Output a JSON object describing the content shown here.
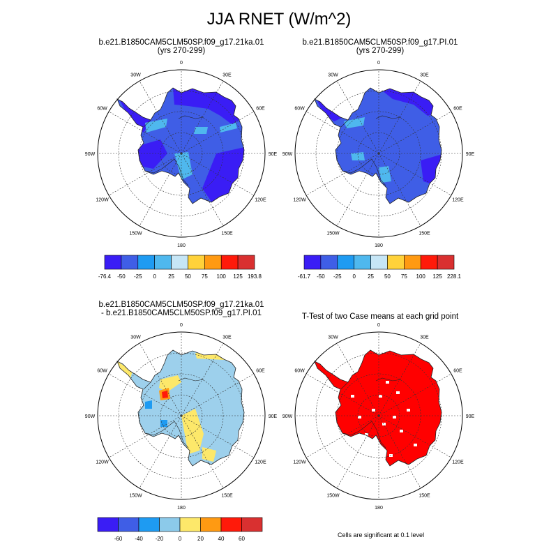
{
  "title": "JJA RNET (W/m^2)",
  "panels": [
    {
      "title_line1": "b.e21.B1850CAM5CLM50SP.f09_g17.21ka.01",
      "title_line2": "(yrs 270-299)"
    },
    {
      "title_line1": "b.e21.B1850CAM5CLM50SP.f09_g17.PI.01",
      "title_line2": "(yrs 270-299)"
    },
    {
      "title_line1": "b.e21.B1850CAM5CLM50SP.f09_g17.21ka.01",
      "title_line2": "- b.e21.B1850CAM5CLM50SP.f09_g17.PI.01"
    },
    {
      "title_line1": "T-Test of two Case means at each grid point",
      "title_line2": ""
    }
  ],
  "lon_labels": [
    "0",
    "30E",
    "60E",
    "90E",
    "120E",
    "150E",
    "180",
    "150W",
    "120W",
    "90W",
    "60W",
    "30W"
  ],
  "colorbars": [
    {
      "labels": [
        "-76.4",
        "-50",
        "-25",
        "0",
        "25",
        "50",
        "75",
        "100",
        "125",
        "193.8"
      ],
      "colors": [
        "#3a1df5",
        "#3f5ee6",
        "#1e9bf2",
        "#4fb8ee",
        "#c6e6f6",
        "#ffd23a",
        "#ff9a12",
        "#ff1a0a",
        "#d93030"
      ]
    },
    {
      "labels": [
        "-61.7",
        "-50",
        "-25",
        "0",
        "25",
        "50",
        "75",
        "100",
        "125",
        "228.1"
      ],
      "colors": [
        "#3a1df5",
        "#3f5ee6",
        "#1e9bf2",
        "#4fb8ee",
        "#c6e6f6",
        "#ffd23a",
        "#ff9a12",
        "#ff1a0a",
        "#d93030"
      ]
    },
    {
      "labels": [
        "-60",
        "-40",
        "-20",
        "0",
        "20",
        "40",
        "60"
      ],
      "colors": [
        "#3a1df5",
        "#3f5ee6",
        "#1e9bf2",
        "#8ccaea",
        "#fde86a",
        "#ff9a12",
        "#ff1a0a",
        "#d93030"
      ]
    }
  ],
  "fills": {
    "p1_base": "#3f5ee6",
    "p1_dark": "#3a1df5",
    "p1_light": "#4fb8ee",
    "p2_base": "#3f5ee6",
    "p2_dark": "#3a1df5",
    "p2_light": "#4fb8ee",
    "p3_base": "#9dd0ec",
    "p3_yellow": "#fde86a",
    "p3_orange": "#ff9a12",
    "p3_red": "#ff1a0a",
    "p3_blue": "#1e9bf2",
    "p4_sig": "#ff0000"
  },
  "ttest_note": "Cells are significant at 0.1 level"
}
